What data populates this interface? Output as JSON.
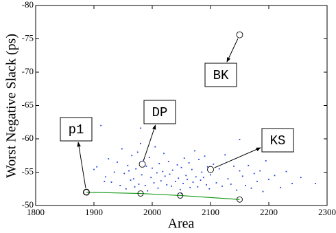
{
  "chart_data": {
    "type": "scatter",
    "xlabel": "Area",
    "ylabel": "Worst Negative Slack (ps)",
    "xlim": [
      1800,
      2300
    ],
    "xticks": [
      1800,
      1900,
      2000,
      2100,
      2200,
      2300
    ],
    "ylim": [
      -50,
      -80
    ],
    "yticks": [
      -50,
      -55,
      -60,
      -65,
      -70,
      -75,
      -80
    ],
    "series": [
      {
        "color": "#1f3fd8",
        "x": [
          1905,
          1912,
          1920,
          1925,
          1930,
          1935,
          1940,
          1945,
          1948,
          1952,
          1955,
          1958,
          1960,
          1963,
          1965,
          1968,
          1970,
          1972,
          1975,
          1977,
          1980,
          1982,
          1985,
          1988,
          1990,
          1992,
          1995,
          1998,
          2000,
          2003,
          2005,
          2008,
          2010,
          2012,
          2015,
          2018,
          2020,
          2022,
          2025,
          2028,
          2030,
          2033,
          2035,
          2038,
          2040,
          2043,
          2045,
          2048,
          2050,
          2053,
          2055,
          2058,
          2060,
          2063,
          2065,
          2068,
          2070,
          2073,
          2075,
          2078,
          2080,
          2083,
          2085,
          2088,
          2090,
          2093,
          2095,
          2098,
          2100,
          2105,
          2110,
          2115,
          2120,
          2125,
          2130,
          2135,
          2140,
          2145,
          2150,
          2155,
          2160,
          2165,
          2170,
          2175,
          2180,
          2185,
          2190,
          2195,
          2200,
          2210,
          2220,
          2230,
          2240,
          2255,
          2280,
          1918,
          2050,
          1980,
          2150,
          1900
        ],
        "values": [
          -55.8,
          -62,
          -54.3,
          -57,
          -53.5,
          -55,
          -56.5,
          -53,
          -58.5,
          -54.8,
          -52.5,
          -56,
          -55.2,
          -53.8,
          -57.5,
          -54,
          -52.8,
          -55.5,
          -58,
          -53.2,
          -59.3,
          -54.6,
          -56.8,
          -53,
          -55.9,
          -52.2,
          -57.2,
          -54.2,
          -55.6,
          -53.4,
          -58.8,
          -54.9,
          -52.6,
          -56.3,
          -53.7,
          -55.1,
          -57.8,
          -54.4,
          -53.1,
          -56.6,
          -54.7,
          -52.9,
          -55.3,
          -63.5,
          -53.6,
          -56.1,
          -54.1,
          -52.4,
          -55.7,
          -53.3,
          -57.1,
          -54.5,
          -53.9,
          -56.4,
          -52.7,
          -55.4,
          -53.5,
          -58.2,
          -54.3,
          -52.8,
          -56.9,
          -53.8,
          -55,
          -54.2,
          -57.4,
          -53.1,
          -55.8,
          -52.5,
          -54.6,
          -56.2,
          -53.4,
          -55.5,
          -52.9,
          -57.6,
          -54,
          -53.2,
          -55.9,
          -52.3,
          -59.9,
          -54.4,
          -53,
          -56,
          -52.6,
          -54.8,
          -53.6,
          -55.2,
          -52.1,
          -56.7,
          -53.9,
          -54.5,
          -52.7,
          -55.1,
          -53.3,
          -54.2,
          -53.3,
          -53.6,
          -51.8,
          -61.6,
          -55.2,
          -55.4
        ]
      },
      {
        "color": "#1a9a1a",
        "line": true,
        "x": [
          1887,
          1980,
          2048,
          2150
        ],
        "values": [
          -52,
          -51.8,
          -51.5,
          -50.9
        ]
      }
    ],
    "annotations": [
      {
        "text": "p1",
        "x": 1887,
        "y": -52
      },
      {
        "text": "DP",
        "x": 1983,
        "y": -56.2
      },
      {
        "text": "BK",
        "x": 2150,
        "y": -75.6
      },
      {
        "text": "KS",
        "x": 2100,
        "y": -55.4
      }
    ]
  }
}
